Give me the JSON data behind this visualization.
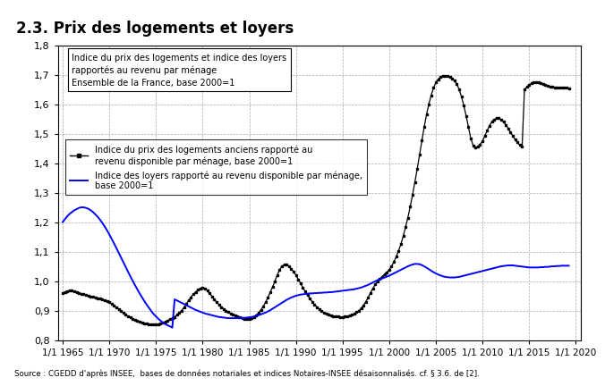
{
  "title": "2.3. Prix des logements et loyers",
  "subtitle_box": "Indice du prix des logements et indice des loyers\nrapportés au revenu par ménage\nEnsemble de la France, base 2000=1",
  "legend_black": "Indice du prix des logements anciens rapporté au\nrevenu disponible par ménage, base 2000=1",
  "legend_blue": "Indice des loyers rapporté au revenu disponible par ménage,\nbase 2000=1",
  "source": "Source : CGEDD d'après INSEE,  bases de données notariales et indices Notaires-INSEE désaisonnalisés. cf. § 3.6. de [2].",
  "ylim": [
    0.8,
    1.8
  ],
  "yticks": [
    0.8,
    0.9,
    1.0,
    1.1,
    1.2,
    1.3,
    1.4,
    1.5,
    1.6,
    1.7,
    1.8
  ],
  "xlim_start": 1964.5,
  "xlim_end": 2020.5,
  "xtick_years": [
    1965,
    1970,
    1975,
    1980,
    1985,
    1990,
    1995,
    2000,
    2005,
    2010,
    2015,
    2020
  ],
  "black_color": "#000000",
  "blue_color": "#0000FF",
  "grid_color": "#AAAAAA"
}
